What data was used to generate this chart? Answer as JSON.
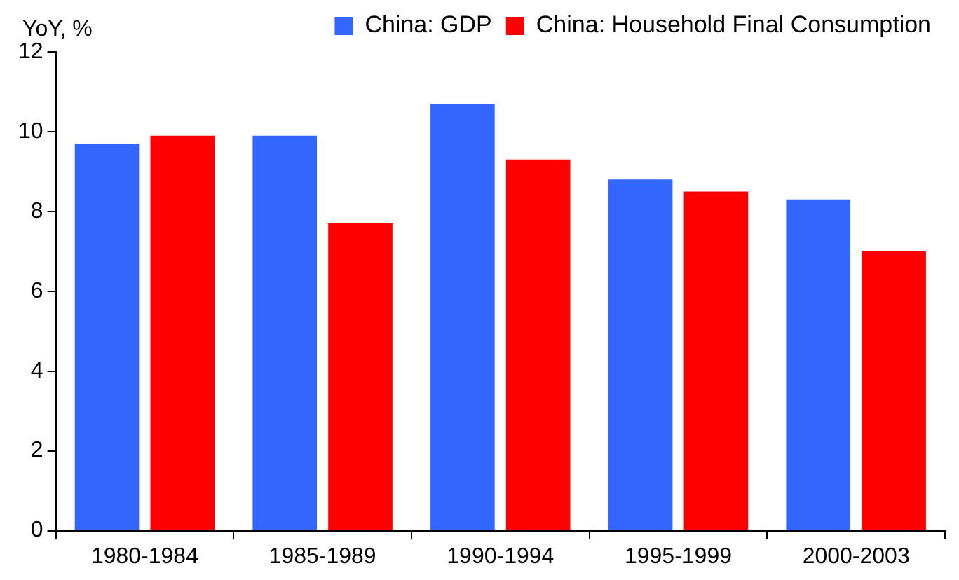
{
  "chart_data": {
    "type": "bar",
    "ylabel": "YoY, %",
    "categories": [
      "1980-1984",
      "1985-1989",
      "1990-1994",
      "1995-1999",
      "2000-2003"
    ],
    "series": [
      {
        "name": "China: GDP",
        "color": "#3366ff",
        "values": [
          9.7,
          9.9,
          10.7,
          8.8,
          8.3
        ]
      },
      {
        "name": "China: Household Final Consumption",
        "color": "#ff0000",
        "values": [
          9.9,
          7.7,
          9.3,
          8.5,
          7.0
        ]
      }
    ],
    "ylim": [
      0,
      12
    ],
    "yticks": [
      0,
      2,
      4,
      6,
      8,
      10,
      12
    ],
    "grid": false,
    "legend": "top right"
  }
}
